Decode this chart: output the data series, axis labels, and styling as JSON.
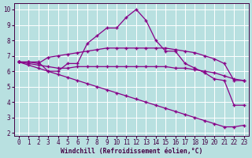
{
  "x": [
    0,
    1,
    2,
    3,
    4,
    5,
    6,
    7,
    8,
    9,
    10,
    11,
    12,
    13,
    14,
    15,
    16,
    17,
    18,
    19,
    20,
    21,
    22,
    23
  ],
  "line_arch": [
    6.6,
    6.6,
    6.6,
    6.0,
    6.0,
    6.5,
    6.5,
    7.8,
    8.3,
    8.8,
    8.8,
    9.5,
    10.0,
    9.3,
    8.0,
    7.3,
    7.3,
    6.5,
    6.2,
    5.9,
    5.5,
    5.4,
    3.8,
    3.8
  ],
  "line_rise": [
    6.6,
    6.6,
    6.5,
    6.9,
    7.0,
    7.1,
    7.2,
    7.3,
    7.4,
    7.5,
    7.5,
    7.5,
    7.5,
    7.5,
    7.5,
    7.5,
    7.4,
    7.3,
    7.2,
    7.0,
    6.8,
    6.5,
    5.4,
    5.4
  ],
  "line_flat": [
    6.6,
    6.5,
    6.4,
    6.3,
    6.2,
    6.2,
    6.3,
    6.3,
    6.3,
    6.3,
    6.3,
    6.3,
    6.3,
    6.3,
    6.3,
    6.3,
    6.2,
    6.2,
    6.1,
    6.0,
    5.9,
    5.7,
    5.5,
    5.4
  ],
  "line_diag": [
    6.6,
    6.4,
    6.2,
    6.0,
    5.8,
    5.6,
    5.4,
    5.2,
    5.0,
    4.8,
    4.6,
    4.4,
    4.2,
    4.0,
    3.8,
    3.6,
    3.4,
    3.2,
    3.0,
    2.8,
    2.6,
    2.4,
    2.4,
    2.5
  ],
  "line_color": "#880088",
  "bg_color": "#b8e0e0",
  "grid_color": "#c8ecec",
  "xlabel": "Windchill (Refroidissement éolien,°C)",
  "xlim_min": -0.5,
  "xlim_max": 23.5,
  "ylim_min": 1.8,
  "ylim_max": 10.4,
  "yticks": [
    2,
    3,
    4,
    5,
    6,
    7,
    8,
    9,
    10
  ],
  "xticks": [
    0,
    1,
    2,
    3,
    4,
    5,
    6,
    7,
    8,
    9,
    10,
    11,
    12,
    13,
    14,
    15,
    16,
    17,
    18,
    19,
    20,
    21,
    22,
    23
  ],
  "xlabel_fontsize": 5.8,
  "tick_fontsize": 5.5,
  "marker_size": 3.5,
  "line_width": 0.9
}
